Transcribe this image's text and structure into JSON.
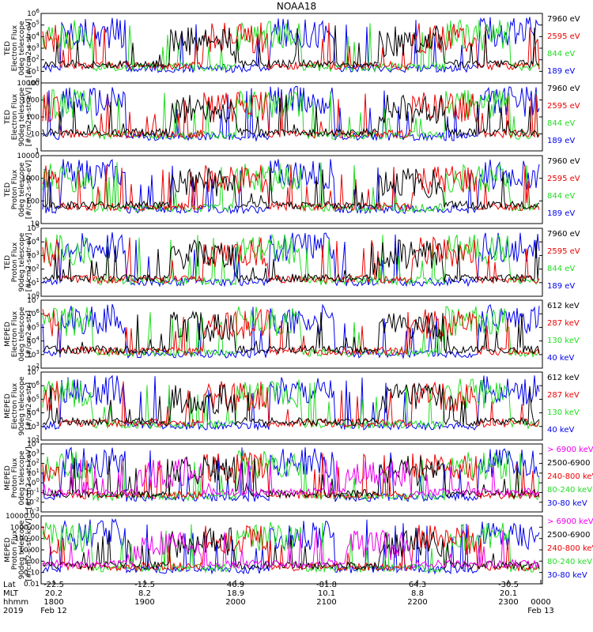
{
  "title": "NOAA18",
  "palette": {
    "black": "#000000",
    "blue": "#0000ee",
    "red": "#ee0000",
    "green": "#22dd22",
    "magenta": "#ee00ee"
  },
  "panels": [
    {
      "ylabel_lines": [
        "TED",
        "Electron Flux",
        "0deg telescope",
        "[#/cm2-s-str-eV]"
      ],
      "scale": "log",
      "ylim": [
        1,
        1000000
      ],
      "ticks": [
        "10^0",
        "10^1",
        "10^2",
        "10^3",
        "10^4",
        "10^5",
        "10^6"
      ],
      "legend": [
        {
          "text": "7960 eV",
          "color": "black"
        },
        {
          "text": "2595 eV",
          "color": "red"
        },
        {
          "text": "844 eV",
          "color": "green"
        },
        {
          "text": "189 eV",
          "color": "blue"
        }
      ]
    },
    {
      "ylabel_lines": [
        "TED",
        "Electron Flux",
        "90deg telescope",
        "[#/cm2-s-str-eV]"
      ],
      "scale": "log",
      "ylim": [
        1,
        10000
      ],
      "ticks": [
        "1",
        "10",
        "100",
        "1000",
        "10000"
      ],
      "legend": [
        {
          "text": "7960 eV",
          "color": "black"
        },
        {
          "text": "2595 eV",
          "color": "red"
        },
        {
          "text": "844 eV",
          "color": "green"
        },
        {
          "text": "189 eV",
          "color": "blue"
        }
      ]
    },
    {
      "ylabel_lines": [
        "TED",
        "Proton Flux",
        "0deg telescope",
        "[#/cm2-s-str-eV]"
      ],
      "scale": "log",
      "ylim": [
        3,
        10000
      ],
      "ticks": [
        "10",
        "100",
        "1000",
        "10000"
      ],
      "legend": [
        {
          "text": "7960 eV",
          "color": "black"
        },
        {
          "text": "2595 eV",
          "color": "red"
        },
        {
          "text": "844 eV",
          "color": "green"
        },
        {
          "text": "189 eV",
          "color": "blue"
        }
      ]
    },
    {
      "ylabel_lines": [
        "TED",
        "Proton Flux",
        "90deg telescope",
        "[#/cm2-s-str-eV]"
      ],
      "scale": "log",
      "ylim": [
        1,
        100000
      ],
      "ticks": [
        "10^0",
        "10^1",
        "10^2",
        "10^3",
        "10^4",
        "10^5"
      ],
      "legend": [
        {
          "text": "7960 eV",
          "color": "black"
        },
        {
          "text": "2595 eV",
          "color": "red"
        },
        {
          "text": "844 eV",
          "color": "green"
        },
        {
          "text": "189 eV",
          "color": "blue"
        }
      ]
    },
    {
      "ylabel_lines": [
        "MEPED",
        "Electron Flux",
        "0deg telescope",
        "[#/cm2-s-str]"
      ],
      "scale": "log",
      "ylim": [
        100,
        10000000
      ],
      "ticks": [
        "10^2",
        "10^3",
        "10^4",
        "10^5",
        "10^6",
        "10^7"
      ],
      "legend": [
        {
          "text": "612 keV",
          "color": "black"
        },
        {
          "text": "287 keV",
          "color": "red"
        },
        {
          "text": "130 keV",
          "color": "green"
        },
        {
          "text": "40 keV",
          "color": "blue"
        }
      ]
    },
    {
      "ylabel_lines": [
        "MEPED",
        "Electron Flux",
        "90deg telescope",
        "[#/cm2-s-str]"
      ],
      "scale": "log",
      "ylim": [
        100,
        10000000
      ],
      "ticks": [
        "10^2",
        "10^3",
        "10^4",
        "10^5",
        "10^6",
        "10^7"
      ],
      "legend": [
        {
          "text": "612 keV",
          "color": "black"
        },
        {
          "text": "287 keV",
          "color": "red"
        },
        {
          "text": "130 keV",
          "color": "green"
        },
        {
          "text": "40 keV",
          "color": "blue"
        }
      ]
    },
    {
      "ylabel_lines": [
        "MEPED",
        "Proton Flux",
        "0deg telescope",
        "[#/cm2-s-str-keV]"
      ],
      "scale": "log",
      "ylim": [
        0.001,
        10000
      ],
      "ticks": [
        "10^-3",
        "10^-2",
        "10^-1",
        "10^0",
        "10^1",
        "10^2",
        "10^3",
        "10^4"
      ],
      "legend": [
        {
          "text": "> 6900 keV",
          "color": "magenta"
        },
        {
          "text": "2500-6900",
          "color": "black"
        },
        {
          "text": "240-800 keV",
          "color": "red"
        },
        {
          "text": "80-240 keV",
          "color": "green"
        },
        {
          "text": "30-80 keV",
          "color": "blue"
        }
      ]
    },
    {
      "ylabel_lines": [
        "MEPED",
        "Proton Flux",
        "90deg telescope",
        "[#/cm2-s-str-keV]"
      ],
      "scale": "log",
      "ylim": [
        0.01,
        10000
      ],
      "ticks": [
        "0.01",
        "0.10",
        "1.00",
        "10.00",
        "100.00",
        "1000.00",
        "10000.00"
      ],
      "legend": [
        {
          "text": "> 6900 keV",
          "color": "magenta"
        },
        {
          "text": "2500-6900",
          "color": "black"
        },
        {
          "text": "240-800 keV",
          "color": "red"
        },
        {
          "text": "80-240 keV",
          "color": "green"
        },
        {
          "text": "30-80 keV",
          "color": "blue"
        }
      ]
    }
  ],
  "xaxis": {
    "row_labels": [
      "Lat",
      "MLT",
      "hhmm",
      "2019"
    ],
    "ticks": [
      {
        "lat": "-22.5",
        "mlt": "20.2",
        "hhmm": "1800",
        "date": "Feb 12"
      },
      {
        "lat": "-12.5",
        "mlt": "8.2",
        "hhmm": "1900",
        "date": ""
      },
      {
        "lat": "46.9",
        "mlt": "18.9",
        "hhmm": "2000",
        "date": ""
      },
      {
        "lat": "-81.8",
        "mlt": "10.1",
        "hhmm": "2100",
        "date": ""
      },
      {
        "lat": "64.3",
        "mlt": "8.8",
        "hhmm": "2200",
        "date": ""
      },
      {
        "lat": "-30.5",
        "mlt": "20.1",
        "hhmm": "2300",
        "date": ""
      },
      {
        "lat": "",
        "mlt": "",
        "hhmm": "0000",
        "date": "Feb 13"
      }
    ]
  },
  "chart_data": {
    "type": "line",
    "title": "NOAA18",
    "x_unit": "hhmm",
    "x": [
      "1800",
      "1900",
      "2000",
      "2100",
      "2200",
      "2300",
      "0000"
    ],
    "panels_count": 8,
    "series_per_panel": [
      [
        "7960 eV",
        "2595 eV",
        "844 eV",
        "189 eV"
      ],
      [
        "7960 eV",
        "2595 eV",
        "844 eV",
        "189 eV"
      ],
      [
        "7960 eV",
        "2595 eV",
        "844 eV",
        "189 eV"
      ],
      [
        "7960 eV",
        "2595 eV",
        "844 eV",
        "189 eV"
      ],
      [
        "612 keV",
        "287 keV",
        "130 keV",
        "40 keV"
      ],
      [
        "612 keV",
        "287 keV",
        "130 keV",
        "40 keV"
      ],
      [
        "> 6900 keV",
        "2500-6900",
        "240-800 keV",
        "80-240 keV",
        "30-80 keV"
      ],
      [
        "> 6900 keV",
        "2500-6900",
        "240-800 keV",
        "80-240 keV",
        "30-80 keV"
      ]
    ]
  }
}
